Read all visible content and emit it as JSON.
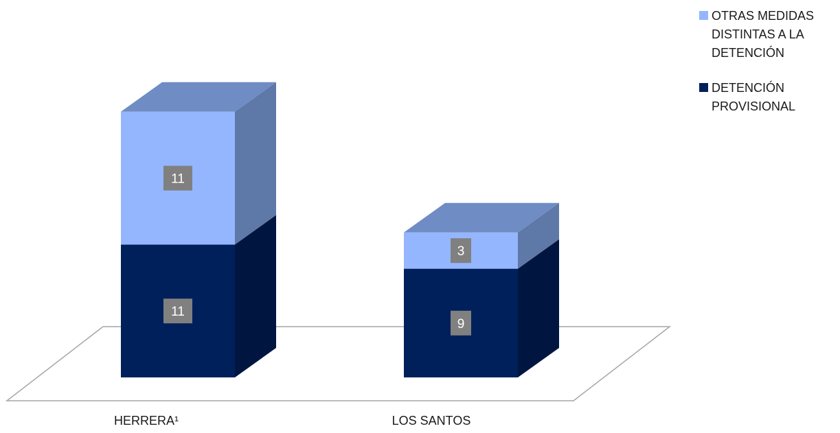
{
  "chart_data": {
    "type": "bar",
    "stacked": true,
    "three_d": true,
    "categories": [
      "HERRERA¹",
      "LOS SANTOS"
    ],
    "series": [
      {
        "name": "DETENCIÓN PROVISIONAL",
        "values": [
          11,
          9
        ],
        "color": "#00205B",
        "side_color": "#001641",
        "top_color": "#00205B"
      },
      {
        "name": "OTRAS MEDIDAS DISTINTAS A LA DETENCIÓN",
        "values": [
          11,
          3
        ],
        "color": "#94B6FF",
        "side_color": "#5E78A8",
        "top_color": "#6F8CC4"
      }
    ],
    "legend": {
      "position": "top-right",
      "items": [
        {
          "label": "OTRAS MEDIDAS\nDISTINTAS A LA\nDETENCIÓN",
          "color": "#94B6FF"
        },
        {
          "label": "DETENCIÓN\nPROVISIONAL",
          "color": "#00205B"
        }
      ]
    },
    "data_label_color": "#808080",
    "floor_color": "#A6A6A6",
    "grid": false,
    "title": "",
    "xlabel": "",
    "ylabel": ""
  }
}
